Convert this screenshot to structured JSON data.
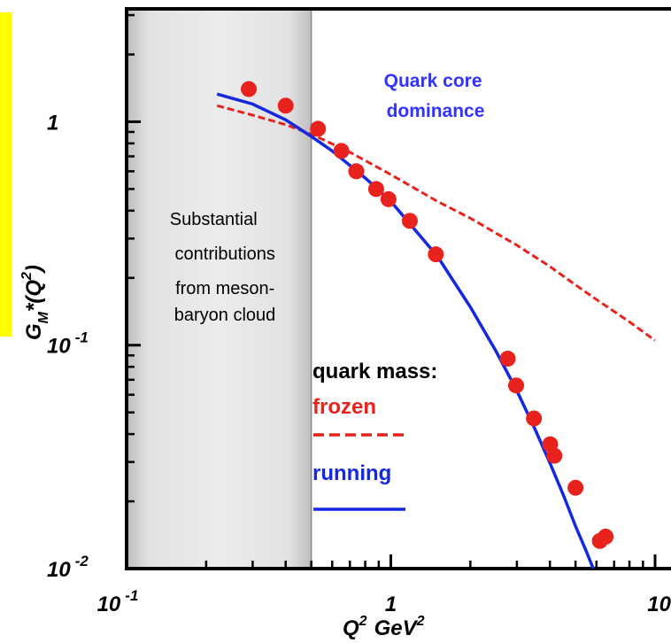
{
  "chart_data": {
    "type": "line",
    "title": "",
    "xlabel": "Q",
    "xlabel_exp": "2",
    "xlabel_unit": "GeV",
    "xlabel_unit_exp": "2",
    "ylabel": "G",
    "ylabel_sub": "M",
    "ylabel_rest": "*(Q",
    "ylabel_exp": "2",
    "ylabel_close": ")",
    "xscale": "log",
    "yscale": "log",
    "xlim": [
      0.1,
      10
    ],
    "ylim": [
      0.01,
      3.2
    ],
    "x_ticks": [
      {
        "base": "10",
        "exp": "-1",
        "value": 0.1
      },
      {
        "base": "1",
        "exp": "",
        "value": 1
      },
      {
        "base": "10",
        "exp": "",
        "value": 10
      }
    ],
    "y_ticks": [
      {
        "base": "10",
        "exp": "-2",
        "value": 0.01
      },
      {
        "base": "10",
        "exp": "-1",
        "value": 0.1
      },
      {
        "base": "1",
        "exp": "",
        "value": 1
      }
    ],
    "grid": false,
    "shaded_region": {
      "x_range": [
        0.1,
        0.5
      ],
      "color": "#e6e6e6",
      "text": [
        "Substantial",
        "contributions",
        "from meson-",
        "baryon cloud"
      ]
    },
    "annotation": {
      "lines": [
        "Quark core",
        "dominance"
      ],
      "color": "#3333ff"
    },
    "series": [
      {
        "name": "running",
        "style": "solid",
        "color": "#1428e0",
        "x": [
          0.22,
          0.3,
          0.4,
          0.5,
          0.6,
          0.8,
          1.0,
          1.5,
          2.0,
          2.5,
          3.0,
          3.5,
          4.0,
          4.5,
          5.0,
          5.5,
          6.0,
          6.3
        ],
        "y": [
          1.33,
          1.2,
          1.02,
          0.86,
          0.74,
          0.56,
          0.44,
          0.25,
          0.148,
          0.094,
          0.0625,
          0.0425,
          0.0297,
          0.0213,
          0.0155,
          0.0119,
          0.0092,
          0.0081
        ]
      },
      {
        "name": "frozen",
        "style": "dashed",
        "color": "#e8221c",
        "x": [
          0.22,
          0.3,
          0.4,
          0.5,
          0.7,
          1.0,
          1.5,
          2.0,
          3.0,
          4.0,
          5.0,
          6.0,
          8.0,
          10.0
        ],
        "y": [
          1.18,
          1.07,
          0.97,
          0.88,
          0.73,
          0.58,
          0.44,
          0.37,
          0.28,
          0.225,
          0.186,
          0.16,
          0.127,
          0.105
        ]
      },
      {
        "name": "data",
        "style": "points",
        "color": "#e8221c",
        "x": [
          0.29,
          0.4,
          0.53,
          0.65,
          0.74,
          0.88,
          0.98,
          1.18,
          1.48,
          2.77,
          2.98,
          3.48,
          4.01,
          4.16,
          5.0,
          6.18,
          6.5
        ],
        "y": [
          1.4,
          1.18,
          0.93,
          0.74,
          0.6,
          0.5,
          0.45,
          0.36,
          0.255,
          0.087,
          0.066,
          0.047,
          0.036,
          0.032,
          0.023,
          0.0133,
          0.0139
        ]
      }
    ],
    "legend": {
      "title": "quark mass:",
      "entries": [
        {
          "label": "frozen",
          "color": "#e8221c",
          "style": "dashed"
        },
        {
          "label": "running",
          "color": "#1428e0",
          "style": "solid"
        }
      ]
    }
  }
}
